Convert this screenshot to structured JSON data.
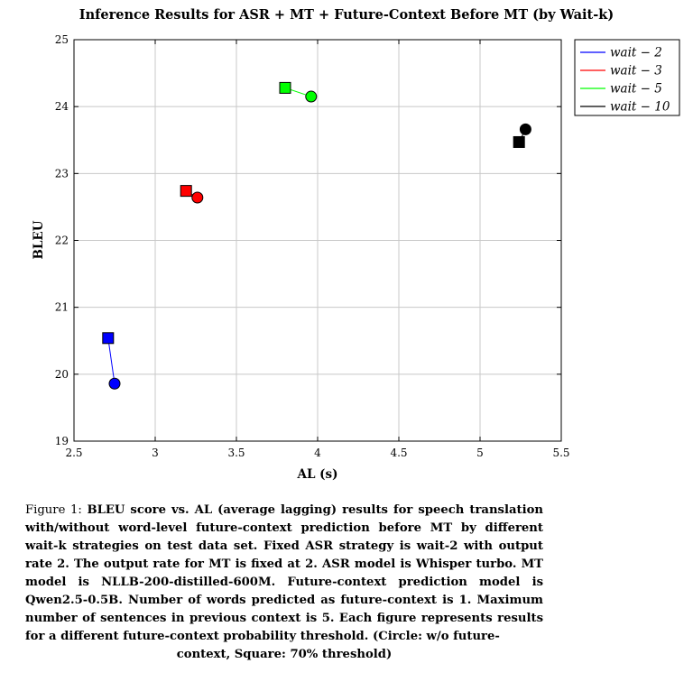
{
  "chart_data": {
    "type": "scatter",
    "title": "Inference Results for ASR + MT + Future-Context Before MT (by Wait-k)",
    "xlabel": "AL (s)",
    "ylabel": "BLEU",
    "xlim": [
      2.5,
      5.5
    ],
    "ylim": [
      19,
      25
    ],
    "xticks": [
      "2.5",
      "3",
      "3.5",
      "4",
      "4.5",
      "5",
      "5.5"
    ],
    "yticks": [
      "19",
      "20",
      "21",
      "22",
      "23",
      "24",
      "25"
    ],
    "grid": true,
    "legend_position": "outside-top-right",
    "series": [
      {
        "name": "wait − 2",
        "color": "#0000ff",
        "points": [
          {
            "marker": "square",
            "x": 2.71,
            "y": 20.54
          },
          {
            "marker": "circle",
            "x": 2.75,
            "y": 19.86
          }
        ]
      },
      {
        "name": "wait − 3",
        "color": "#ff0000",
        "points": [
          {
            "marker": "square",
            "x": 3.19,
            "y": 22.74
          },
          {
            "marker": "circle",
            "x": 3.26,
            "y": 22.64
          }
        ]
      },
      {
        "name": "wait − 5",
        "color": "#00ff00",
        "points": [
          {
            "marker": "square",
            "x": 3.8,
            "y": 24.28
          },
          {
            "marker": "circle",
            "x": 3.96,
            "y": 24.15
          }
        ]
      },
      {
        "name": "wait − 10",
        "color": "#000000",
        "points": [
          {
            "marker": "square",
            "x": 5.24,
            "y": 23.47
          },
          {
            "marker": "circle",
            "x": 5.28,
            "y": 23.66
          }
        ]
      }
    ]
  },
  "caption": {
    "label": "Figure 1:",
    "body": "BLEU score vs.  AL (average lagging) results for speech translation with/without word-level future-context prediction before MT by different wait-k strategies on test data set. Fixed ASR strategy is wait-2 with output rate 2. The output rate for MT is fixed at 2.  ASR model is Whisper turbo.  MT model is NLLB-200-distilled-600M. Future-context prediction model is Qwen2.5-0.5B. Number of words predicted as future-context is 1.  Maximum number of sentences in previous context is 5.  Each figure represents results for a different future-context probability threshold.  (Circle: w/o future-",
    "last_line": "context, Square: 70% threshold)"
  }
}
